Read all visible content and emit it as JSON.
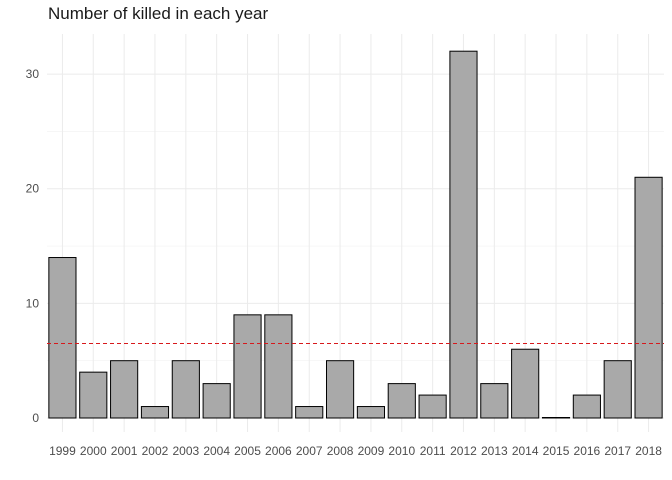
{
  "chart_data": {
    "type": "bar",
    "title": "Number of killed in each year",
    "xlabel": "",
    "ylabel": "",
    "categories": [
      "1999",
      "2000",
      "2001",
      "2002",
      "2003",
      "2004",
      "2005",
      "2006",
      "2007",
      "2008",
      "2009",
      "2010",
      "2011",
      "2012",
      "2013",
      "2014",
      "2015",
      "2016",
      "2017",
      "2018"
    ],
    "values": [
      14,
      4,
      5,
      1,
      5,
      3,
      9,
      9,
      1,
      5,
      1,
      3,
      2,
      32,
      3,
      6,
      0,
      2,
      5,
      21
    ],
    "ylim": [
      0,
      33.5
    ],
    "yticks": [
      0,
      10,
      20,
      30
    ],
    "reference_line": {
      "value": 6.5,
      "style": "dashed",
      "color": "#d7191c"
    },
    "bar_fill": "#a9a9a9",
    "bar_stroke": "#000000",
    "grid": true,
    "legend": "none"
  }
}
